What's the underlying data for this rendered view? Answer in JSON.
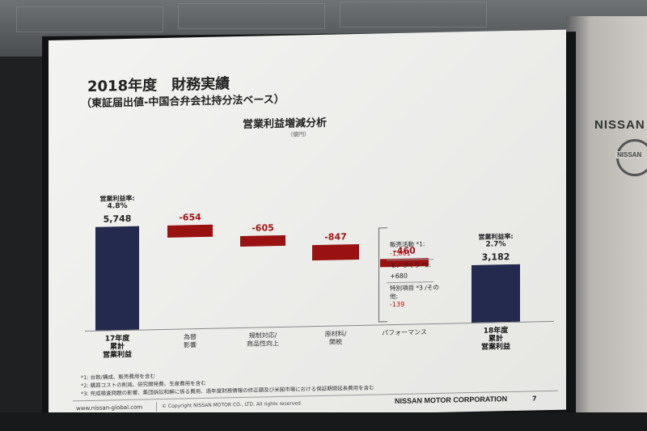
{
  "slide": {
    "title": "2018年度　財務実績",
    "subtitle": "（東証届出値-中国合弁会社持分法ベース）",
    "chart_title": "営業利益増減分析",
    "unit": "（億円）"
  },
  "chart_data": {
    "type": "bar",
    "title": "営業利益増減分析",
    "unit": "億円",
    "categories": [
      "17年度 累計 営業利益",
      "為替 影響",
      "規制対応/ 商品性向上",
      "原材料/ 関税",
      "パフォーマンス",
      "18年度 累計 営業利益"
    ],
    "values": [
      5748,
      -654,
      -605,
      -847,
      -460,
      3182
    ],
    "value_labels": [
      "5,748",
      "-654",
      "-605",
      "-847",
      "-460",
      "3,182"
    ],
    "margin_start": {
      "label": "営業利益率:",
      "value": "4.8%"
    },
    "margin_end": {
      "label": "営業利益率:",
      "value": "2.7%"
    },
    "performance_breakdown": [
      {
        "label": "販売活動 *1:",
        "value": "-1,001"
      },
      {
        "label": "モノづくり *2:",
        "value": "+680"
      },
      {
        "label": "特別項目 *3 /その他:",
        "value": "-139"
      }
    ]
  },
  "categories_display": [
    [
      "17年度",
      "累計",
      "営業利益"
    ],
    [
      "為替",
      "影響"
    ],
    [
      "規制対応/",
      "商品性向上"
    ],
    [
      "原材料/",
      "関税"
    ],
    [
      "パフォーマンス"
    ],
    [
      "18年度",
      "累計",
      "営業利益"
    ]
  ],
  "footnotes": [
    "*1: 台数/構成、販売費用を含む",
    "*2: 購買コストの削減、研究開発費、生産費用を含む",
    "*3: 完成検査問題の影響、集団訴訟和解に係る費用、過年度財務情報の修正額及び米国市場における保証期間延長費用を含む"
  ],
  "footer": {
    "url": "www.nissan-global.com",
    "copyright": "© Copyright NISSAN MOTOR CO., LTD. All rights reserved.",
    "corporation": "NISSAN MOTOR CORPORATION",
    "page": "7"
  },
  "wall": {
    "logo": "NISSAN",
    "emblem": "NISSAN"
  },
  "colors": {
    "blue_bar": "#232a4d",
    "red_bar": "#9a1111",
    "slide_bg": "#efefed"
  }
}
